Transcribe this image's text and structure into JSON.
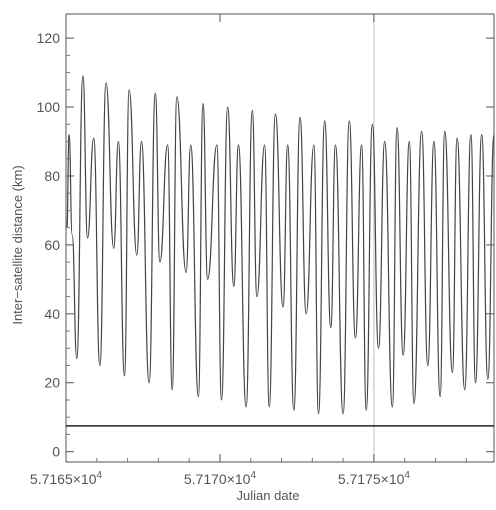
{
  "chart_data": {
    "type": "line",
    "title": "",
    "xlabel": "Julian date",
    "ylabel": "Inter−satellite distance (km)",
    "xlim": [
      57165.0,
      57178.9
    ],
    "ylim": [
      -3,
      127
    ],
    "grid": false,
    "legend": "none",
    "x_ticks": [
      {
        "value": 57165,
        "mantissa": "5.7165×10",
        "exponent": "4"
      },
      {
        "value": 57170,
        "mantissa": "5.7170×10",
        "exponent": "4"
      },
      {
        "value": 57175,
        "mantissa": "5.7175×10",
        "exponent": "4"
      }
    ],
    "y_ticks": [
      {
        "value": 0,
        "label": "0"
      },
      {
        "value": 20,
        "label": "20"
      },
      {
        "value": 40,
        "label": "40"
      },
      {
        "value": 60,
        "label": "60"
      },
      {
        "value": 80,
        "label": "80"
      },
      {
        "value": 100,
        "label": "100"
      },
      {
        "value": 120,
        "label": "120"
      }
    ],
    "reference_lines": [
      {
        "orientation": "vertical",
        "x": 57175.0,
        "color": "#c8c8c8"
      },
      {
        "orientation": "horizontal",
        "y": 7.5,
        "color": "#222222"
      }
    ],
    "series": [
      {
        "color": "#444444",
        "x": [
          57165.03,
          57165.1,
          57165.2,
          57165.35,
          57165.55,
          57165.7,
          57165.9,
          57166.1,
          57166.3,
          57166.55,
          57166.7,
          57166.9,
          57167.05,
          57167.3,
          57167.45,
          57167.7,
          57167.9,
          57168.05,
          57168.3,
          57168.45,
          57168.6,
          57168.9,
          57169.05,
          57169.3,
          57169.45,
          57169.6,
          57169.9,
          57170.05,
          57170.25,
          57170.45,
          57170.6,
          57170.85,
          57171.05,
          57171.2,
          57171.45,
          57171.6,
          57171.8,
          57172.05,
          57172.2,
          57172.4,
          57172.6,
          57172.8,
          57173.05,
          57173.2,
          57173.4,
          57173.6,
          57173.75,
          57174.0,
          57174.2,
          57174.4,
          57174.6,
          57174.75,
          57174.95,
          57175.15,
          57175.35,
          57175.6,
          57175.75,
          57175.95,
          57176.15,
          57176.3,
          57176.55,
          57176.75,
          57176.95,
          57177.15,
          57177.3,
          57177.55,
          57177.7,
          57177.95,
          57178.15,
          57178.3,
          57178.5,
          57178.7,
          57178.9
        ],
        "y": [
          65,
          92,
          63,
          27,
          109,
          62,
          91,
          25,
          107,
          59,
          90,
          22,
          105,
          57,
          90,
          20,
          104,
          55,
          89,
          18,
          103,
          52,
          89,
          16,
          101,
          50,
          89,
          15,
          100,
          48,
          89,
          13,
          99,
          45,
          89,
          13,
          98,
          42,
          89,
          12,
          97,
          40,
          89,
          11,
          96,
          36,
          89,
          11,
          96,
          33,
          89,
          12,
          95,
          30,
          90,
          13,
          94,
          28,
          90,
          14,
          93,
          25,
          90,
          16,
          93,
          23,
          91,
          18,
          92,
          20,
          92,
          21,
          92
        ]
      }
    ]
  }
}
